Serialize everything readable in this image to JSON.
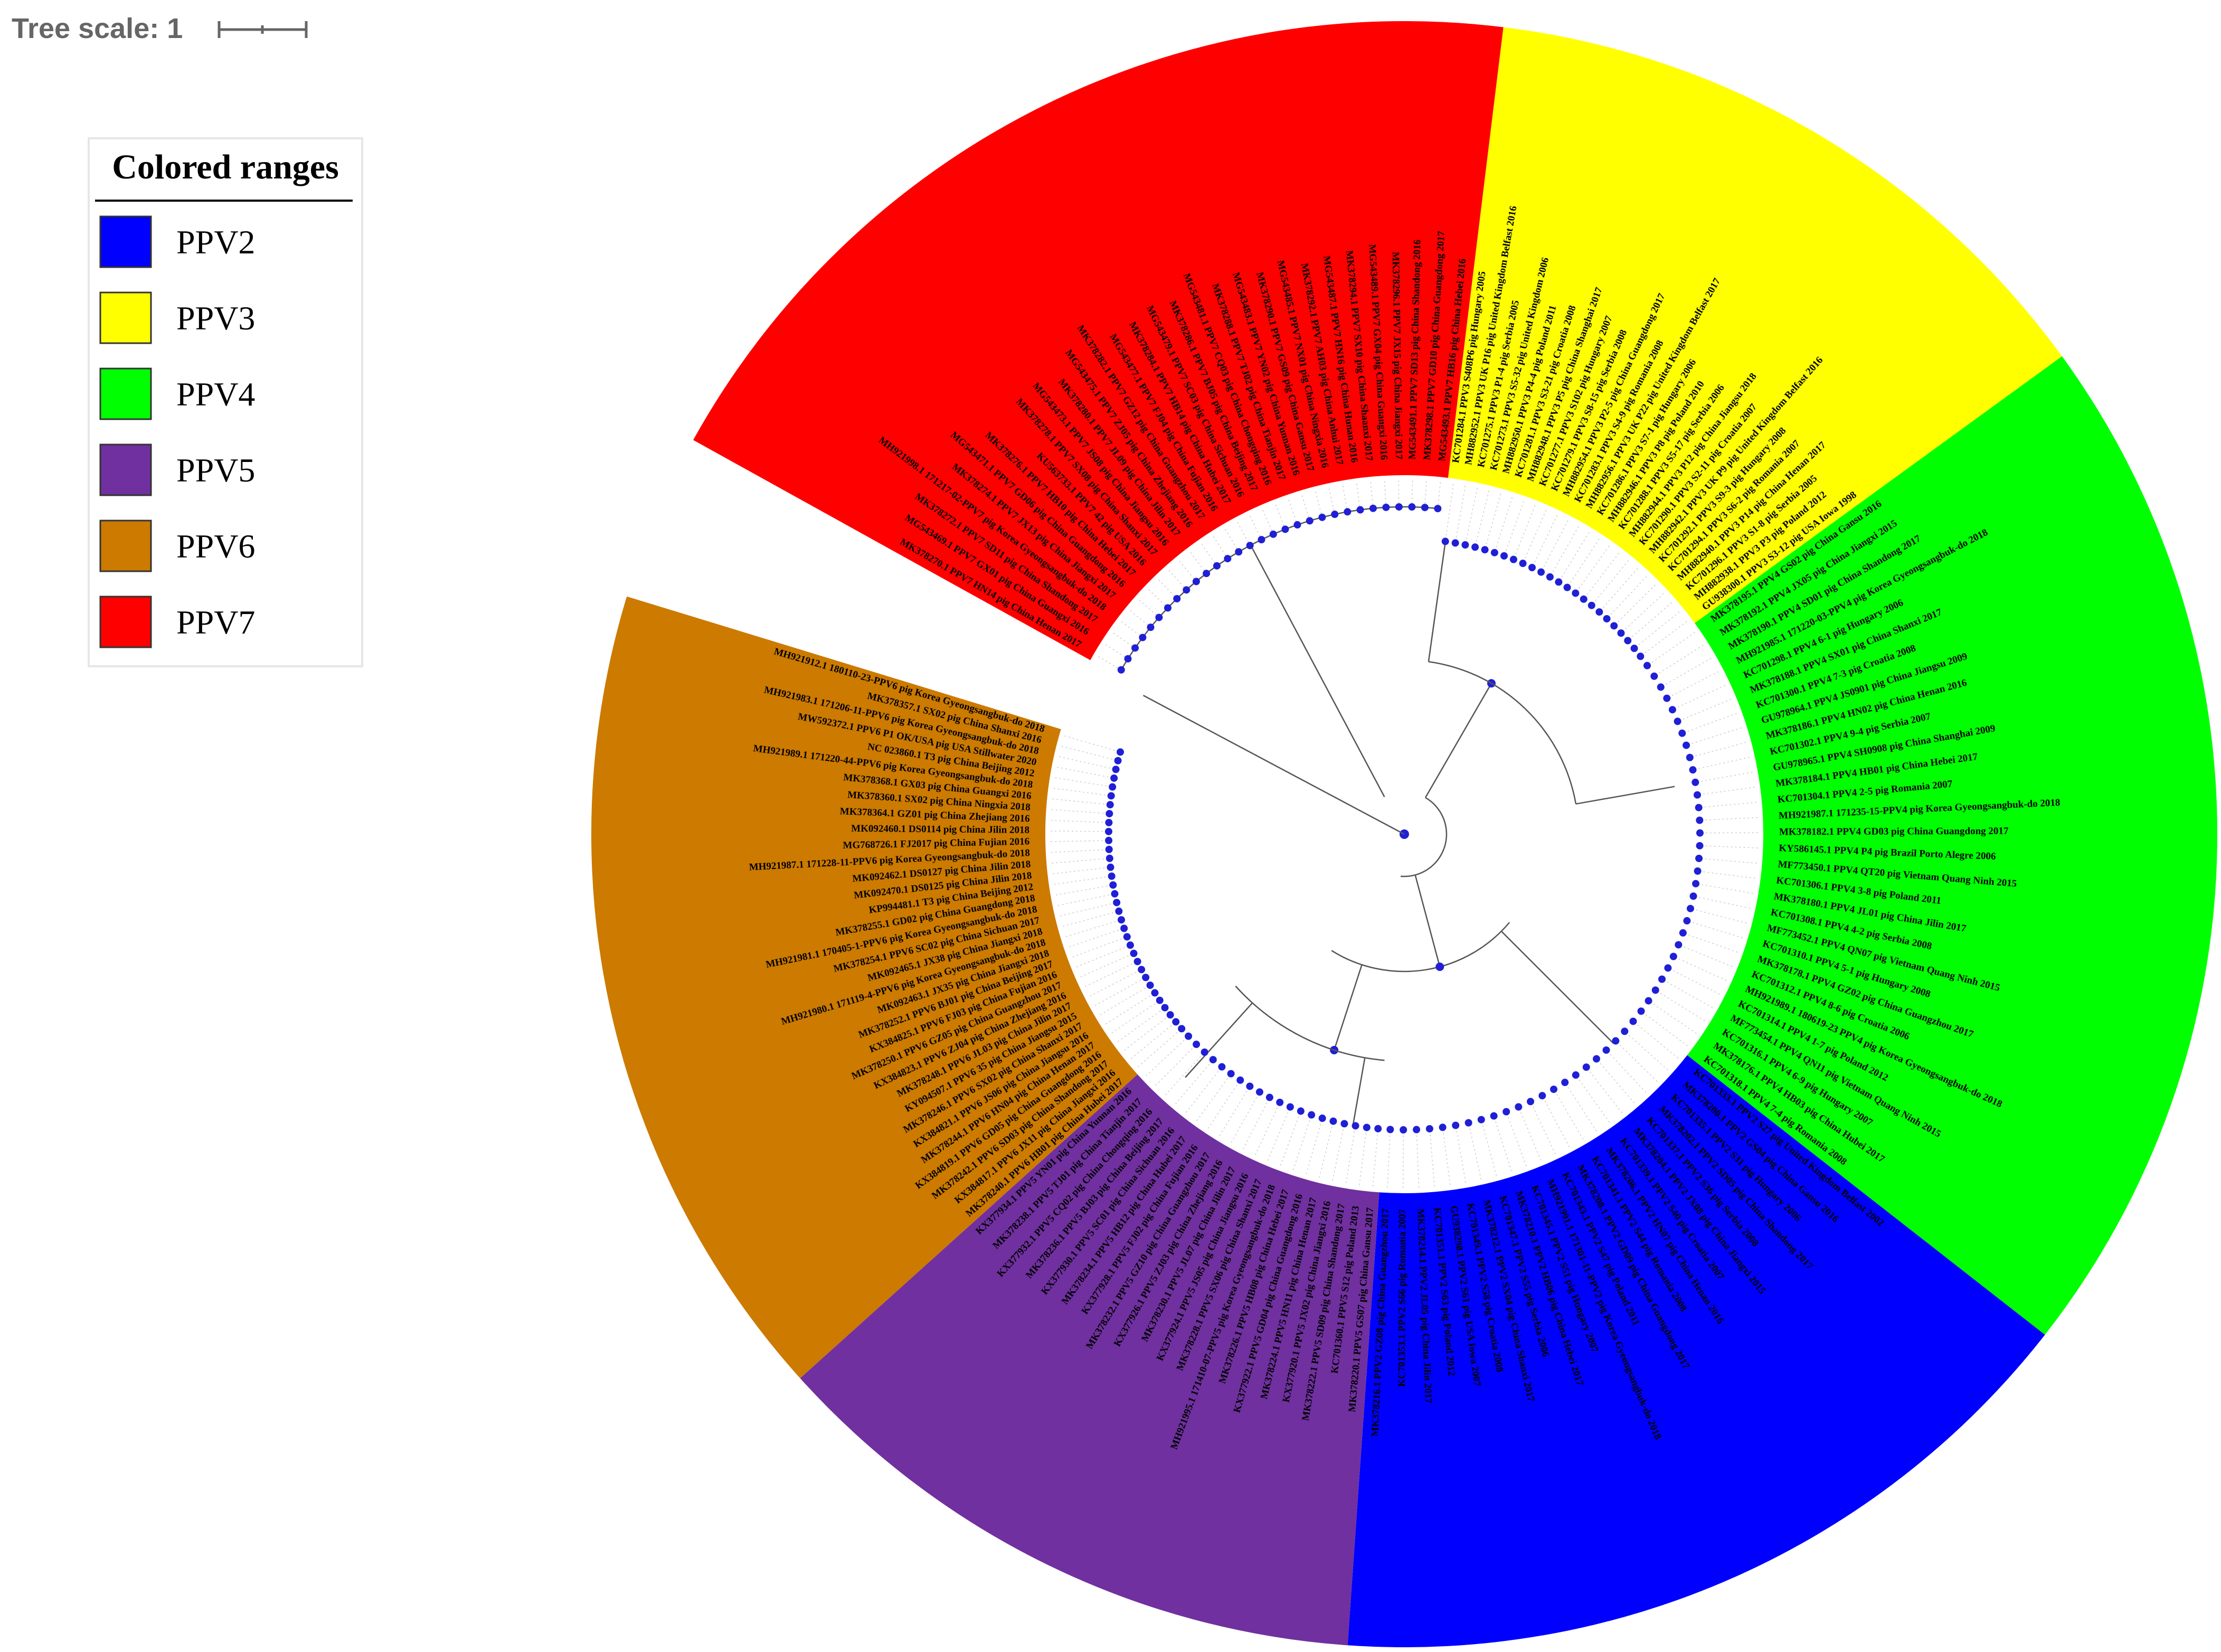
{
  "tree_scale": {
    "label": "Tree scale: 1"
  },
  "legend": {
    "title": "Colored ranges",
    "items": [
      {
        "label": "PPV2",
        "color": "#0000FF"
      },
      {
        "label": "PPV3",
        "color": "#FFFF00"
      },
      {
        "label": "PPV4",
        "color": "#00FF00"
      },
      {
        "label": "PPV5",
        "color": "#7030A0"
      },
      {
        "label": "PPV6",
        "color": "#CC7A00"
      },
      {
        "label": "PPV7",
        "color": "#FF0000"
      }
    ]
  },
  "clades": [
    {
      "name": "PPV3",
      "color": "#FFFF00",
      "text_color": "#000000",
      "leaves": [
        "KC701284.1 PPV3 S408P6 pig Hungary 2005",
        "MH882952.1 PPV3 UK P16 pig United Kingdom Belfast 2016",
        "KC701275.1 PPV3 P1-4 pig Serbia 2005",
        "KC701273.1 PPV3 S5-32 pig United Kingdom 2006",
        "MH882950.1 PPV3 P4-4 pig Poland 2011",
        "KC701281.1 PPV3 S3-21 pig Croatia 2008",
        "MH882948.1 PPV3 P5 pig China Shanghai 2017",
        "KC701277.1 PPV3 S102 pig Hungary 2007",
        "KC701279.1 PPV3 S8-15 pig Serbia 2008",
        "MH882954.1 PPV3 P2-5 pig China Guangdong 2017",
        "KC701283.1 PPV3 S4-9 pig Romania 2008",
        "MH882956.1 PPV3 UK P22 pig United Kingdom Belfast 2017",
        "KC701286.1 PPV3 S7-1 pig Hungary 2006",
        "MH882946.1 PPV3 P8 pig Poland 2010",
        "KC701288.1 PPV3 S5-17 pig Serbia 2006",
        "MH882944.1 PPV3 P12 pig China Jiangsu 2018",
        "KC701290.1 PPV3 S2-11 pig Croatia 2007",
        "MH882942.1 PPV3 UK P9 pig United Kingdom Belfast 2016",
        "KC701292.1 PPV3 S9-3 pig Hungary 2008",
        "KC701294.1 PPV3 S6-2 pig Romania 2007",
        "MH882940.1 PPV3 P14 pig China Henan 2017",
        "KC701296.1 PPV3 S1-8 pig Serbia 2005",
        "MH882938.1 PPV3 P3 pig Poland 2012",
        "GU938300.1 PPV3 S3-12 pig USA Iowa 1998"
      ]
    },
    {
      "name": "PPV4",
      "color": "#00FF00",
      "text_color": "#000000",
      "leaves": [
        "MK378195.1 PPV4 GS02 pig China Gansu 2016",
        "MK378192.1 PPV4 JX05 pig China Jiangxi 2015",
        "MK378190.1 PPV4 SD01 pig China Shandong 2017",
        "MH921985.1 171220-03-PPV4 pig Korea Gyeongsangbuk-do 2018",
        "KC701298.1 PPV4 6-1 pig Hungary 2006",
        "MK378188.1 PPV4 SX01 pig China Shanxi 2017",
        "KC701300.1 PPV4 7-3 pig Croatia 2008",
        "GU978964.1 PPV4 JS0901 pig China Jiangsu 2009",
        "MK378186.1 PPV4 HN02 pig China Henan 2016",
        "KC701302.1 PPV4 9-4 pig Serbia 2007",
        "GU978965.1 PPV4 SH0908 pig China Shanghai 2009",
        "MK378184.1 PPV4 HB01 pig China Hebei 2017",
        "KC701304.1 PPV4 2-5 pig Romania 2007",
        "MH921987.1 171235-15-PPV4 pig Korea Gyeongsangbuk-do 2018",
        "MK378182.1 PPV4 GD03 pig China Guangdong 2017",
        "KY586145.1 PPV4 P4 pig Brazil Porto Alegre 2006",
        "MF773450.1 PPV4 QT20 pig Vietnam Quang Ninh 2015",
        "KC701306.1 PPV4 3-8 pig Poland 2011",
        "MK378180.1 PPV4 JL01 pig China Jilin 2017",
        "KC701308.1 PPV4 4-2 pig Serbia 2008",
        "MF773452.1 PPV4 QN07 pig Vietnam Quang Ninh 2015",
        "KC701310.1 PPV4 5-1 pig Hungary 2008",
        "MK378178.1 PPV4 GZ02 pig China Guangzhou 2017",
        "KC701312.1 PPV4 8-6 pig Croatia 2006",
        "MH921989.1 180619-23 PPV4 pig Korea Gyeongsangbuk-do 2018",
        "KC701314.1 PPV4 1-7 pig Poland 2012",
        "MF773454.1 PPV4 QN11 pig Vietnam Quang Ninh 2015",
        "KC701316.1 PPV4 6-9 pig Hungary 2007",
        "MK378176.1 PPV4 HB03 pig China Hubei 2017",
        "KC701318.1 PPV4 7-4 pig Romania 2008"
      ]
    },
    {
      "name": "PPV2",
      "color": "#0000FF",
      "text_color": "#000000",
      "leaves": [
        "KC701333.1 PPV2 S27 pig United Kingdom Belfast 2002",
        "MK378200.1 PPV2 GS04 pig China Gansu 2016",
        "KC701335.1 PPV2 S31 pig Hungary 2006",
        "MK378202.1 PPV2 SD05 pig China Shandong 2017",
        "KC701337.1 PPV2 S36 pig Serbia 2008",
        "MK378204.1 PPV2 JX08 pig China Jiangxi 2015",
        "KC701339.1 PPV2 S40 pig Croatia 2007",
        "MK378206.1 PPV2 HN07 pig China Henan 2016",
        "KC701341.1 PPV2 S44 pig Romania 2008",
        "MK378208.1 PPV2 GD09 pig China Guangdong 2017",
        "KC701343.1 PPV2 S47 pig Poland 2011",
        "MH921991.1 171301-11-PPV2 pig Korea Gyeongsangbuk-do 2018",
        "KC701345.1 PPV2 S51 pig Hungary 2007",
        "MK378210.1 PPV2 HB06 pig China Hebei 2017",
        "KC701347.1 PPV2 S55 pig Serbia 2006",
        "MK378212.1 PPV2 SX04 pig China Shanxi 2017",
        "KC701349.1 PPV2 S58 pig Croatia 2008",
        "GU938298.1 PPV2 S61 pig USA Iowa 2007",
        "KC701351.1 PPV2 S63 pig Poland 2012",
        "MK378214.1 PPV2 JL05 pig China Jilin 2017",
        "KC701353.1 PPV2 S66 pig Romania 2007",
        "MK378216.1 PPV2 GZ08 pig China Guangzhou 2017"
      ]
    },
    {
      "name": "PPV5",
      "color": "#7030A0",
      "text_color": "#000000",
      "leaves": [
        "MK378220.1 PPV5 GS07 pig China Gansu 2017",
        "KC701360.1 PPV5 S12 pig Poland 2013",
        "MK378222.1 PPV5 SD09 pig China Shandong 2017",
        "KX377920.1 PPV5 JX02 pig China Jiangxi 2016",
        "MK378224.1 PPV5 HN11 pig China Henan 2017",
        "KX377922.1 PPV5 GD04 pig China Guangdong 2016",
        "MK378226.1 PPV5 HB08 pig China Hebei 2017",
        "MH921995.1 171410-07-PPV5 pig Korea Gyeongsangbuk-do 2018",
        "MK378228.1 PPV5 SX06 pig China Shanxi 2017",
        "KX377924.1 PPV5 JS05 pig China Jiangsu 2016",
        "MK378230.1 PPV5 JL07 pig China Jilin 2017",
        "KX377926.1 PPV5 ZJ03 pig China Zhejiang 2016",
        "MK378232.1 PPV5 GZ10 pig China Guangzhou 2017",
        "KX377928.1 PPV5 FJ02 pig China Fujian 2016",
        "MK378234.1 PPV5 HB12 pig China Hubei 2017",
        "KX377930.1 PPV5 SC01 pig China Sichuan 2016",
        "MK378236.1 PPV5 BJ03 pig China Beijing 2017",
        "KX377932.1 PPV5 CQ02 pig China Chongqing 2016",
        "MK378238.1 PPV5 TJ01 pig China Tianjin 2017",
        "KX377934.1 PPV5 YN01 pig China Yunnan 2016"
      ]
    },
    {
      "name": "PPV6",
      "color": "#CC7A00",
      "text_color": "#000000",
      "leaves": [
        "MK378240.1 PPV6 HB01 pig China Hubei 2017",
        "KX384817.1 PPV6 JX11 pig China Jiangxi 2016",
        "MK378242.1 PPV6 SD03 pig China Shandong 2017",
        "KX384819.1 PPV6 GD05 pig China Guangdong 2016",
        "MK378244.1 PPV6 HN04 pig China Henan 2017",
        "KX384821.1 PPV6 JS06 pig China Jiangsu 2016",
        "MK378246.1 PPV6 SX02 pig China Shanxi 2017",
        "KY094507.1 PPV6 35 pig China Jiangsu 2015",
        "MK378248.1 PPV6 JL03 pig China Jilin 2017",
        "KX384823.1 PPV6 ZJ04 pig China Zhejiang 2016",
        "MK378250.1 PPV6 GZ05 pig China Guangzhou 2017",
        "KX384825.1 PPV6 FJ03 pig China Fujian 2016",
        "MK378252.1 PPV6 BJ01 pig China Beijing 2017",
        "MK092463.1 JX35 pig China Jiangxi 2018",
        "MH921980.1 171119-4-PPV6 pig Korea Gyeongsangbuk-do 2018",
        "MK092465.1 JX38 pig China Jiangxi 2018",
        "MK378254.1 PPV6 SC02 pig China Sichuan 2017",
        "MH921981.1 170405-1-PPV6 pig Korea Gyeongsangbuk-do 2018",
        "MK378255.1 GD02 pig China Guangdong 2018",
        "KP994481.1 T3 pig China Beijing 2012",
        "MK092470.1 DS0125 pig China Jilin 2018",
        "MK092462.1 DS0127 pig China Jilin 2018",
        "MH921987.1 171228-11-PPV6 pig Korea Gyeongsangbuk-do 2018",
        "MG768726.1 FJ2017 pig China Fujian 2016",
        "MK092460.1 DS0114 pig China Jilin 2018",
        "MK378364.1 GZ01 pig China Zhejiang 2016",
        "MK378360.1 SX02 pig China Ningxia 2018",
        "MK378368.1 GX03 pig China Guangxi 2016",
        "MH921989.1 171220-44-PPV6 pig Korea Gyeongsangbuk-do 2018",
        "NC 023860.1 T3 pig China Beijing 2012",
        "MW592372.1 PPV6 P1 OK/USA pig USA Stillwater 2020",
        "MH921983.1 171206-11-PPV6 pig Korea Gyeongsangbuk-do 2018",
        "MK378357.1 SX02 pig China Shanxi 2016",
        "MH921912.1 180110-23-PPV6 pig Korea Gyeongsangbuk-do 2018"
      ]
    },
    {
      "name": "PPV7",
      "color": "#FF0000",
      "text_color": "#000000",
      "leaves": [
        "MK378270.1 PPV7 HN14 pig China Henan 2017",
        "MG543469.1 PPV7 GX01 pig China Guangxi 2016",
        "MK378272.1 PPV7 SD11 pig China Shandong 2017",
        "MH921998.1 171217-02-PPV7 pig Korea Gyeongsangbuk-do 2018",
        "MK378274.1 PPV7 JX13 pig China Jiangxi 2017",
        "MG543471.1 PPV7 GD06 pig China Guangdong 2016",
        "MK378276.1 PPV7 HB10 pig China Hebei 2017",
        "KU563733.1 PPV7 42 pig USA 2016",
        "MK378278.1 PPV7 SX08 pig China Shanxi 2017",
        "MG543473.1 PPV7 JS08 pig China Jiangsu 2016",
        "MK378280.1 PPV7 JL09 pig China Jilin 2017",
        "MG543475.1 PPV7 ZJ05 pig China Zhejiang 2016",
        "MK378282.1 PPV7 GZ12 pig China Guangzhou 2017",
        "MG543477.1 PPV7 FJ04 pig China Fujian 2016",
        "MK378284.1 PPV7 HB14 pig China Hubei 2017",
        "MG543479.1 PPV7 SC03 pig China Sichuan 2016",
        "MK378286.1 PPV7 BJ05 pig China Beijing 2017",
        "MG543481.1 PPV7 CQ03 pig China Chongqing 2016",
        "MK378288.1 PPV7 TJ02 pig China Tianjin 2017",
        "MG543483.1 PPV7 YN02 pig China Yunnan 2016",
        "MK378290.1 PPV7 GS09 pig China Gansu 2017",
        "MG543485.1 PPV7 NX01 pig China Ningxia 2016",
        "MK378292.1 PPV7 AH03 pig China Anhui 2017",
        "MG543487.1 PPV7 HN16 pig China Hunan 2016",
        "MK378294.1 PPV7 SX10 pig China Shaanxi 2017",
        "MG543489.1 PPV7 GX04 pig China Guangxi 2016",
        "MK378296.1 PPV7 JX15 pig China Jiangxi 2017",
        "MG543491.1 PPV7 SD13 pig China Shandong 2016",
        "MK378298.1 PPV7 GD10 pig China Guangdong 2017",
        "MG543493.1 PPV7 HB16 pig China Hebei 2016"
      ]
    }
  ]
}
